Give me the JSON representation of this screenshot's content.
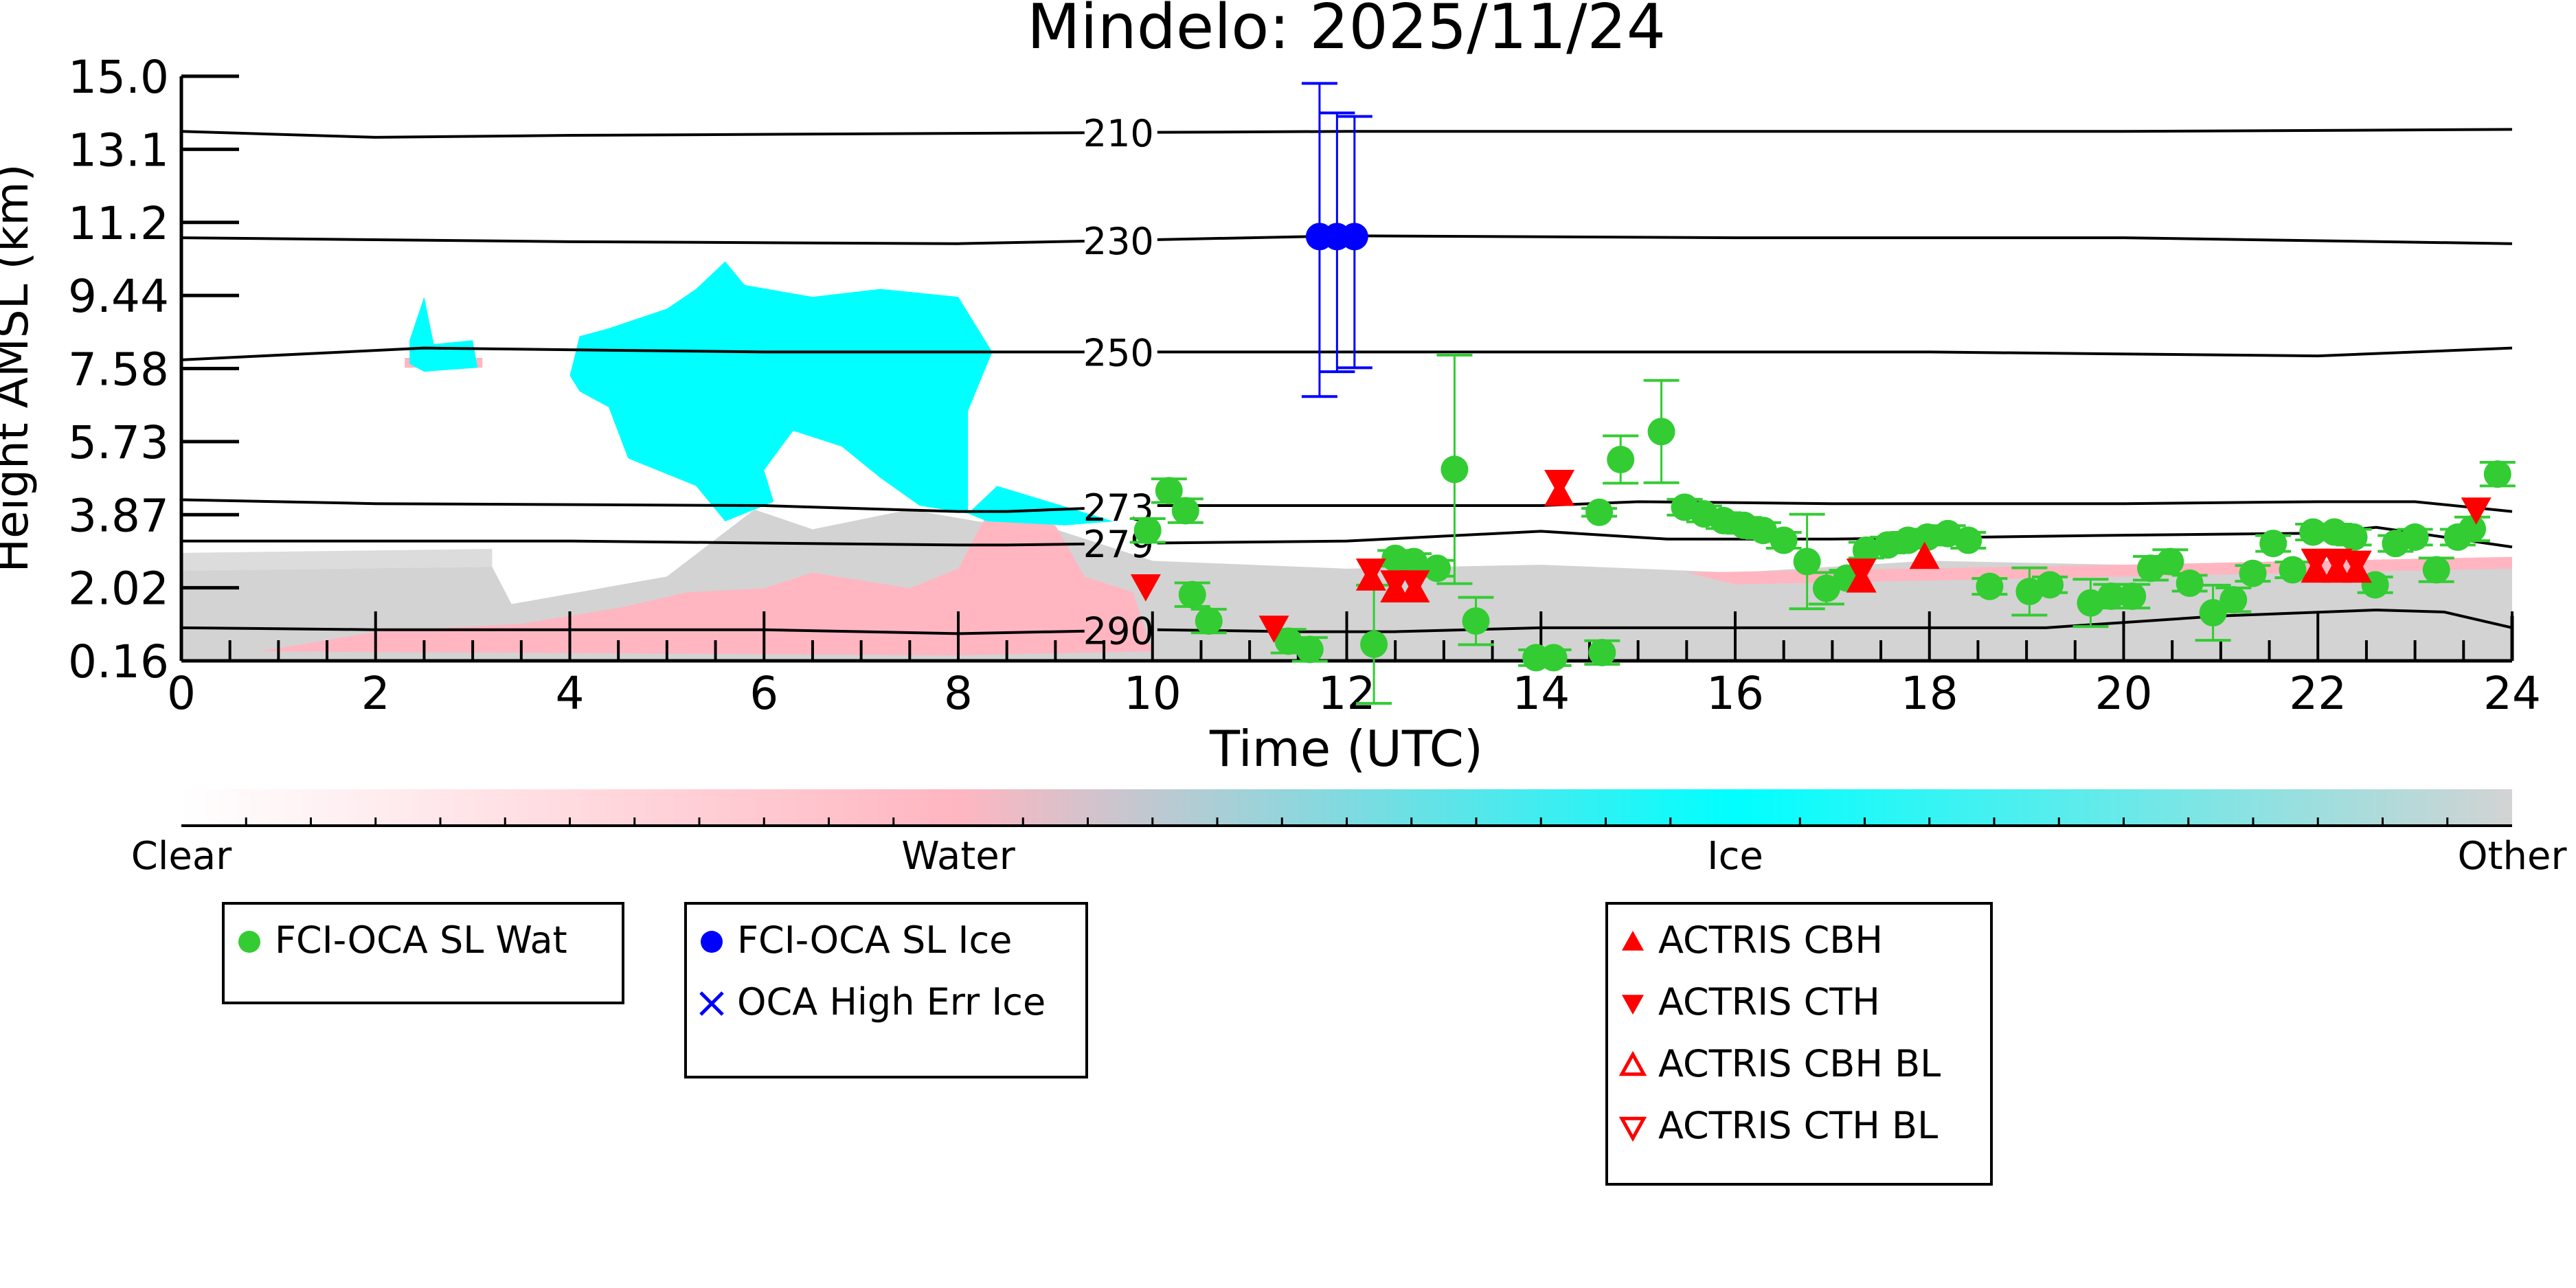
{
  "chart_data": {
    "type": "scatter",
    "title": "Mindelo: 2025/11/24",
    "xlabel": "Time (UTC)",
    "ylabel": "Height AMSL (km)",
    "xlim": [
      0,
      24
    ],
    "ylim": [
      0.16,
      15.0
    ],
    "xticks": [
      "0",
      "2",
      "4",
      "6",
      "8",
      "10",
      "12",
      "14",
      "16",
      "18",
      "20",
      "22",
      "24"
    ],
    "xtick_values": [
      0,
      2,
      4,
      6,
      8,
      10,
      12,
      14,
      16,
      18,
      20,
      22,
      24
    ],
    "yticks": [
      "0.16",
      "2.02",
      "3.87",
      "5.73",
      "7.58",
      "9.44",
      "11.2",
      "13.1",
      "15.0"
    ],
    "ytick_values": [
      0.16,
      2.015,
      3.87,
      5.725,
      7.58,
      9.435,
      11.29,
      13.145,
      15.0
    ],
    "isotherms": [
      {
        "label": "210",
        "points": [
          [
            0,
            13.6
          ],
          [
            2,
            13.45
          ],
          [
            4,
            13.5
          ],
          [
            8,
            13.55
          ],
          [
            12,
            13.6
          ],
          [
            16,
            13.6
          ],
          [
            20,
            13.6
          ],
          [
            24,
            13.65
          ]
        ]
      },
      {
        "label": "230",
        "points": [
          [
            0,
            10.9
          ],
          [
            4,
            10.8
          ],
          [
            8,
            10.75
          ],
          [
            10,
            10.85
          ],
          [
            12,
            10.95
          ],
          [
            16,
            10.9
          ],
          [
            20,
            10.9
          ],
          [
            24,
            10.75
          ]
        ]
      },
      {
        "label": "250",
        "points": [
          [
            0,
            7.8
          ],
          [
            2.5,
            8.1
          ],
          [
            6,
            8.0
          ],
          [
            10,
            8.0
          ],
          [
            14,
            8.0
          ],
          [
            18,
            8.0
          ],
          [
            22,
            7.9
          ],
          [
            24,
            8.1
          ]
        ]
      },
      {
        "label": "273",
        "points": [
          [
            0,
            4.25
          ],
          [
            2,
            4.15
          ],
          [
            6,
            4.1
          ],
          [
            8,
            3.95
          ],
          [
            8.5,
            3.95
          ],
          [
            10,
            4.1
          ],
          [
            14,
            4.1
          ],
          [
            15,
            4.2
          ],
          [
            17,
            4.15
          ],
          [
            20,
            4.15
          ],
          [
            22,
            4.2
          ],
          [
            23,
            4.2
          ],
          [
            24,
            3.95
          ]
        ]
      },
      {
        "label": "279",
        "points": [
          [
            0,
            3.2
          ],
          [
            4,
            3.2
          ],
          [
            8,
            3.1
          ],
          [
            8.5,
            3.1
          ],
          [
            10,
            3.15
          ],
          [
            12,
            3.2
          ],
          [
            14,
            3.45
          ],
          [
            15.3,
            3.25
          ],
          [
            17,
            3.25
          ],
          [
            20,
            3.35
          ],
          [
            22,
            3.4
          ],
          [
            22.6,
            3.55
          ],
          [
            24,
            3.05
          ]
        ]
      },
      {
        "label": "290",
        "points": [
          [
            0,
            1.0
          ],
          [
            2,
            0.95
          ],
          [
            6,
            0.95
          ],
          [
            8,
            0.85
          ],
          [
            10,
            0.95
          ],
          [
            11.5,
            0.9
          ],
          [
            12.5,
            0.9
          ],
          [
            14,
            1.0
          ],
          [
            16,
            1.0
          ],
          [
            18,
            1.0
          ],
          [
            19.2,
            1.0
          ],
          [
            21,
            1.3
          ],
          [
            22.6,
            1.45
          ],
          [
            23.3,
            1.4
          ],
          [
            24,
            1.0
          ]
        ]
      }
    ],
    "mask_regions": [
      {
        "class": "other",
        "color": "#d3d3d3",
        "points": [
          [
            0,
            0.16
          ],
          [
            0,
            2.45
          ],
          [
            3.2,
            2.55
          ],
          [
            3.4,
            1.6
          ],
          [
            5,
            2.3
          ],
          [
            5.9,
            4.0
          ],
          [
            6.5,
            3.5
          ],
          [
            7.5,
            4.0
          ],
          [
            8.2,
            3.7
          ],
          [
            9,
            3.5
          ],
          [
            9.5,
            3.1
          ],
          [
            10,
            2.7
          ],
          [
            12,
            2.5
          ],
          [
            14,
            2.6
          ],
          [
            16,
            2.4
          ],
          [
            18,
            2.7
          ],
          [
            20,
            2.6
          ],
          [
            22,
            2.7
          ],
          [
            24,
            2.75
          ],
          [
            24,
            0.16
          ]
        ]
      },
      {
        "class": "other",
        "color": "#dcdcdc",
        "points": [
          [
            0,
            2.45
          ],
          [
            0,
            2.9
          ],
          [
            3.2,
            3.0
          ],
          [
            3.2,
            2.55
          ]
        ]
      },
      {
        "class": "water",
        "color": "#ffb6c1",
        "points": [
          [
            0.8,
            0.4
          ],
          [
            2,
            0.9
          ],
          [
            3.5,
            1.1
          ],
          [
            4.5,
            1.5
          ],
          [
            5.2,
            1.9
          ],
          [
            6,
            2.0
          ],
          [
            6.5,
            2.4
          ],
          [
            7.5,
            2.0
          ],
          [
            8,
            2.5
          ],
          [
            8.3,
            3.9
          ],
          [
            9,
            3.6
          ],
          [
            9.3,
            2.3
          ],
          [
            9.8,
            1.9
          ],
          [
            10,
            0.4
          ],
          [
            8,
            0.3
          ]
        ]
      },
      {
        "class": "water",
        "color": "#ffb6c1",
        "points": [
          [
            2.3,
            7.85
          ],
          [
            3.1,
            7.85
          ],
          [
            3.1,
            7.6
          ],
          [
            2.3,
            7.6
          ]
        ]
      },
      {
        "class": "water",
        "color": "#ffb6c1",
        "points": [
          [
            15.5,
            2.4
          ],
          [
            20,
            2.6
          ],
          [
            24,
            2.8
          ],
          [
            24,
            2.5
          ],
          [
            20,
            2.3
          ],
          [
            16,
            2.1
          ]
        ]
      },
      {
        "class": "ice",
        "color": "#00ffff",
        "points": [
          [
            4,
            7.4
          ],
          [
            4.1,
            8.4
          ],
          [
            4.4,
            8.6
          ],
          [
            5,
            9.1
          ],
          [
            5.3,
            9.6
          ],
          [
            5.6,
            10.3
          ],
          [
            5.8,
            9.7
          ],
          [
            6.5,
            9.4
          ],
          [
            7.2,
            9.6
          ],
          [
            8,
            9.4
          ],
          [
            8.35,
            8.0
          ],
          [
            8.1,
            6.5
          ],
          [
            8.1,
            3.9
          ],
          [
            7.6,
            4.1
          ],
          [
            7.2,
            4.8
          ],
          [
            6.8,
            5.6
          ],
          [
            6.3,
            6.0
          ],
          [
            6.0,
            5.0
          ],
          [
            6.1,
            4.2
          ],
          [
            5.6,
            3.7
          ],
          [
            5.3,
            4.6
          ],
          [
            4.6,
            5.3
          ],
          [
            4.4,
            6.6
          ],
          [
            4.1,
            7.0
          ]
        ]
      },
      {
        "class": "ice",
        "color": "#00ffff",
        "points": [
          [
            2.35,
            8.3
          ],
          [
            2.5,
            9.4
          ],
          [
            2.6,
            8.2
          ],
          [
            3.0,
            8.3
          ],
          [
            3.05,
            7.6
          ],
          [
            2.5,
            7.5
          ],
          [
            2.35,
            7.7
          ]
        ]
      },
      {
        "class": "ice",
        "color": "#00ffff",
        "points": [
          [
            8.1,
            3.9
          ],
          [
            8.4,
            4.6
          ],
          [
            9.2,
            4.0
          ],
          [
            9.6,
            3.7
          ],
          [
            9.1,
            3.6
          ],
          [
            8.3,
            3.7
          ]
        ]
      }
    ],
    "series": [
      {
        "name": "FCI-OCA SL Wat",
        "color": "#33cc33",
        "marker": "circle",
        "points": [
          [
            9.95,
            3.47,
            0.3
          ],
          [
            10.17,
            4.48,
            0.3
          ],
          [
            10.34,
            3.97,
            0.3
          ],
          [
            10.41,
            1.84,
            0.3
          ],
          [
            10.58,
            1.17,
            0.3
          ],
          [
            11.4,
            0.66,
            0.3
          ],
          [
            11.62,
            0.45,
            0.3
          ],
          [
            12.28,
            0.58,
            1.5
          ],
          [
            12.5,
            2.76,
            0.2
          ],
          [
            12.69,
            2.68,
            0.2
          ],
          [
            12.93,
            2.51,
            0.2
          ],
          [
            13.11,
            5.02,
            2.9
          ],
          [
            13.33,
            1.17,
            0.6
          ],
          [
            13.95,
            0.24,
            0.2
          ],
          [
            14.13,
            0.24,
            0.2
          ],
          [
            14.63,
            0.37,
            0.3
          ],
          [
            14.82,
            5.27,
            0.6
          ],
          [
            15.24,
            5.98,
            1.3
          ],
          [
            14.6,
            3.93,
            0.1
          ],
          [
            15.48,
            4.06,
            0.2
          ],
          [
            15.68,
            3.89,
            0.2
          ],
          [
            15.88,
            3.72,
            0.2
          ],
          [
            16.09,
            3.6,
            0.2
          ],
          [
            16.29,
            3.47,
            0.2
          ],
          [
            16.5,
            3.22,
            0.2
          ],
          [
            16.74,
            2.68,
            1.2
          ],
          [
            16.94,
            2.0,
            0.4
          ],
          [
            17.15,
            2.26,
            0.2
          ],
          [
            17.35,
            2.97,
            0.2
          ],
          [
            17.57,
            3.1,
            0.2
          ],
          [
            17.78,
            3.22,
            0.2
          ],
          [
            17.98,
            3.3,
            0.2
          ],
          [
            18.19,
            3.39,
            0.2
          ],
          [
            18.4,
            3.22,
            0.2
          ],
          [
            18.62,
            2.05,
            0.2
          ],
          [
            19.03,
            1.92,
            0.6
          ],
          [
            19.24,
            2.09,
            0.2
          ],
          [
            19.66,
            1.63,
            0.6
          ],
          [
            19.87,
            1.8,
            0.3
          ],
          [
            20.09,
            1.8,
            0.3
          ],
          [
            20.28,
            2.51,
            0.3
          ],
          [
            20.48,
            2.68,
            0.3
          ],
          [
            20.68,
            2.13,
            0.2
          ],
          [
            20.92,
            1.38,
            0.7
          ],
          [
            21.13,
            1.71,
            0.3
          ],
          [
            21.33,
            2.38,
            0.2
          ],
          [
            21.54,
            3.14,
            0.2
          ],
          [
            21.74,
            2.47,
            0.2
          ],
          [
            21.95,
            3.43,
            0.2
          ],
          [
            22.17,
            3.43,
            0.2
          ],
          [
            22.37,
            3.3,
            0.2
          ],
          [
            22.59,
            2.09,
            0.2
          ],
          [
            22.8,
            3.14,
            0.2
          ],
          [
            23.0,
            3.3,
            0.2
          ],
          [
            23.22,
            2.47,
            0.3
          ],
          [
            23.44,
            3.3,
            0.2
          ],
          [
            23.59,
            3.51,
            0.3
          ],
          [
            23.85,
            4.9,
            0.3
          ]
        ]
      },
      {
        "name": "FCI-OCA SL Ice",
        "color": "#0000ff",
        "marker": "circle",
        "points": [
          [
            11.72,
            10.93,
            6.87,
            14.82
          ],
          [
            11.9,
            10.93,
            7.5,
            14.07
          ],
          [
            12.08,
            10.93,
            7.6,
            13.98
          ]
        ]
      },
      {
        "name": "OCA High Err Ice",
        "color": "#0000ff",
        "marker": "x",
        "points": []
      },
      {
        "name": "ACTRIS CBH",
        "color": "#ff0000",
        "marker": "triangle-up",
        "points": [
          [
            12.25,
            2.25
          ],
          [
            12.5,
            1.95
          ],
          [
            12.7,
            1.95
          ],
          [
            14.19,
            4.4
          ],
          [
            17.3,
            2.2
          ],
          [
            17.95,
            2.8
          ],
          [
            21.98,
            2.45
          ],
          [
            22.2,
            2.45
          ],
          [
            22.4,
            2.45
          ]
        ]
      },
      {
        "name": "ACTRIS CTH",
        "color": "#ff0000",
        "marker": "triangle-down",
        "points": [
          [
            9.93,
            2.05
          ],
          [
            11.25,
            1.0
          ],
          [
            12.25,
            2.45
          ],
          [
            12.5,
            2.15
          ],
          [
            12.7,
            2.15
          ],
          [
            14.19,
            4.7
          ],
          [
            17.3,
            2.45
          ],
          [
            21.98,
            2.7
          ],
          [
            22.2,
            2.7
          ],
          [
            22.4,
            2.65
          ],
          [
            23.63,
            4.0
          ]
        ]
      },
      {
        "name": "ACTRIS CBH BL",
        "color": "#ff0000",
        "marker": "triangle-up-open",
        "points": []
      },
      {
        "name": "ACTRIS CTH BL",
        "color": "#ff0000",
        "marker": "triangle-down-open",
        "points": []
      }
    ],
    "colorbar": {
      "labels": [
        "Clear",
        "Water",
        "Ice",
        "Other"
      ],
      "colors": [
        "#ffffff",
        "#ffb6c1",
        "#00ffff",
        "#d3d3d3"
      ]
    },
    "legends": [
      [
        "FCI-OCA SL Wat"
      ],
      [
        "FCI-OCA SL Ice",
        "OCA High Err Ice"
      ],
      [
        "ACTRIS CBH",
        "ACTRIS CTH",
        "ACTRIS CBH BL",
        "ACTRIS CTH BL"
      ]
    ]
  }
}
